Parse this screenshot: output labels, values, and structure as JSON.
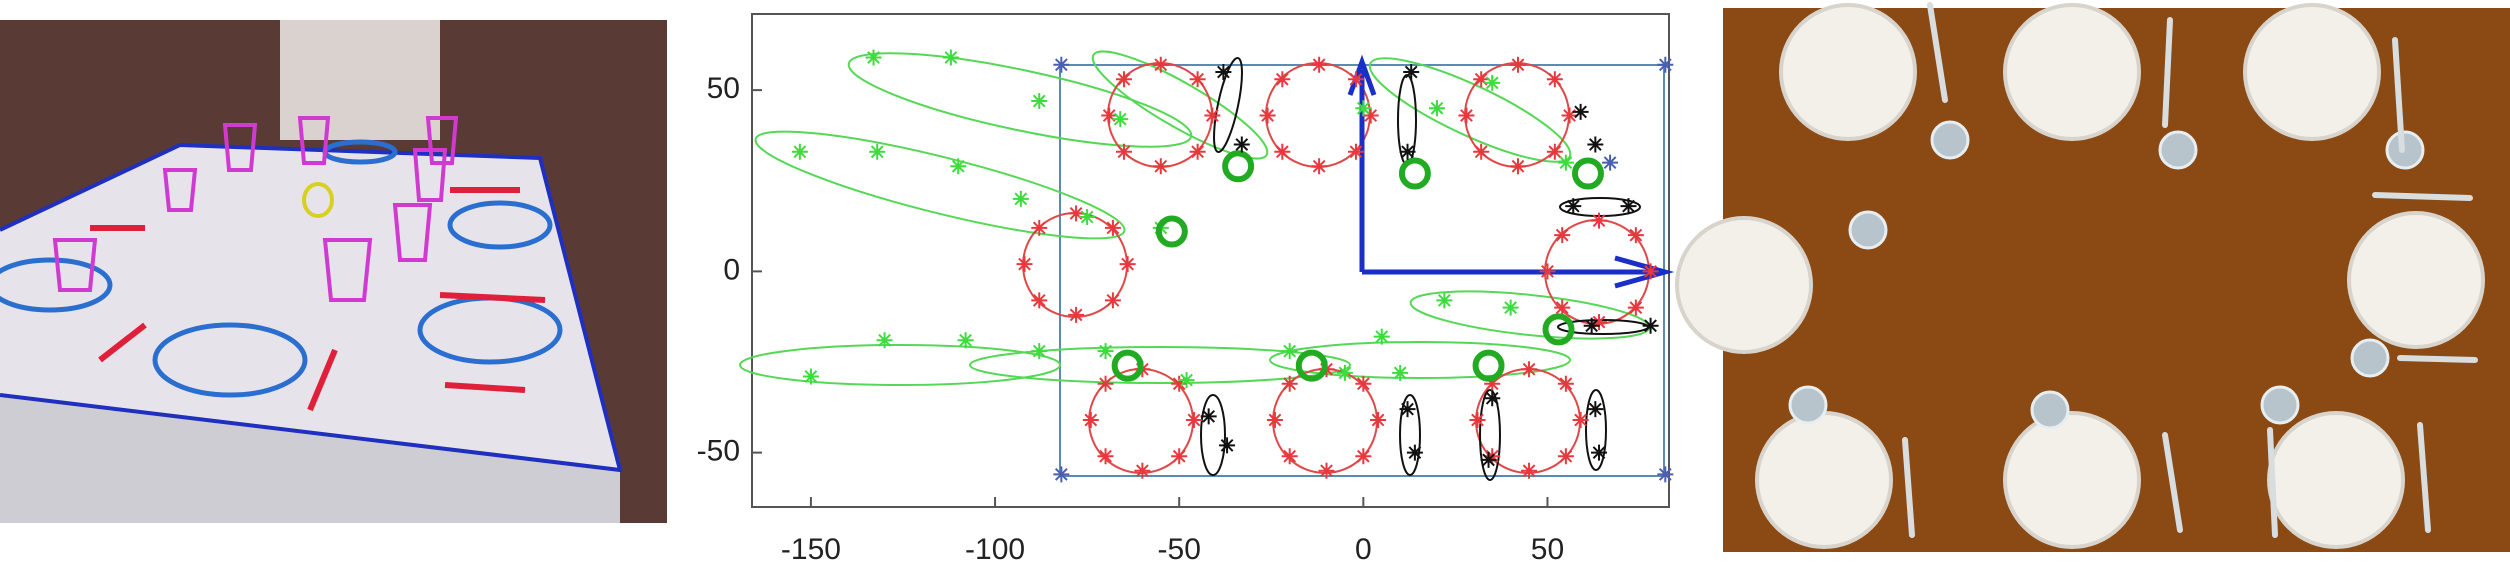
{
  "chart_data": {
    "type": "scatter",
    "xlim": [
      -166,
      83
    ],
    "ylim": [
      -65,
      71
    ],
    "xticks": [
      -150,
      -100,
      -50,
      0,
      50
    ],
    "yticks": [
      -50,
      0,
      50
    ],
    "series": [
      {
        "color": "#e8383d",
        "marker": "asterisk",
        "x": [
          -41,
          -45,
          -55,
          -65,
          -69,
          -65,
          -55,
          -45,
          2,
          -2,
          -12,
          -22,
          -26,
          -22,
          -12,
          -2,
          56,
          52,
          42,
          32,
          28,
          32,
          42,
          52,
          -64,
          -68,
          -78,
          -88,
          -92,
          -88,
          -78,
          -68,
          78,
          74,
          64,
          54,
          50,
          54,
          64,
          74,
          -46,
          -50,
          -60,
          -70,
          -74,
          -70,
          -60,
          -50,
          4,
          0,
          -10,
          -20,
          -24,
          -20,
          -10,
          0,
          59,
          55,
          45,
          35,
          31,
          35,
          45,
          55
        ],
        "values": [
          43,
          53,
          57,
          53,
          43,
          33,
          29,
          33,
          43,
          53,
          57,
          53,
          43,
          33,
          29,
          33,
          43,
          53,
          57,
          53,
          43,
          33,
          29,
          33,
          2,
          12,
          16,
          12,
          2,
          -8,
          -12,
          -8,
          0,
          10,
          14,
          10,
          0,
          -10,
          -14,
          -10,
          -41,
          -31,
          -27,
          -31,
          -41,
          -51,
          -55,
          -51,
          -41,
          -31,
          -27,
          -31,
          -41,
          -51,
          -55,
          -51,
          -41,
          -31,
          -27,
          -31,
          -41,
          -51,
          -55,
          -51
        ]
      },
      {
        "color": "#3ddc3d",
        "marker": "asterisk",
        "x": [
          -133,
          -112,
          -88,
          -66,
          -153,
          -132,
          -110,
          -93,
          -75,
          -55,
          -150,
          -130,
          -108,
          -88,
          -70,
          -48,
          -20,
          5,
          22,
          40,
          -5,
          10,
          0,
          20,
          35,
          55
        ],
        "values": [
          59,
          59,
          47,
          42,
          33,
          33,
          29,
          20,
          15,
          12,
          -29,
          -19,
          -19,
          -22,
          -22,
          -30,
          -22,
          -18,
          -8,
          -10,
          -28,
          -28,
          45,
          45,
          52,
          30
        ]
      },
      {
        "color": "#22aa22",
        "marker": "circle",
        "x": [
          -52,
          -64,
          -14,
          34,
          -34,
          14,
          61,
          53
        ],
        "values": [
          11,
          -26,
          -26,
          -26,
          29,
          27,
          27,
          -16
        ]
      },
      {
        "color": "#111111",
        "marker": "asterisk",
        "x": [
          -38,
          -33,
          13,
          12,
          59,
          63,
          57,
          72,
          62,
          78,
          -42,
          -37,
          12,
          14,
          35,
          34,
          63,
          64
        ],
        "values": [
          55,
          35,
          55,
          33,
          44,
          35,
          18,
          18,
          -15,
          -15,
          -40,
          -48,
          -38,
          -50,
          -35,
          -52,
          -38,
          -50
        ]
      },
      {
        "color": "#4a5fb0",
        "marker": "asterisk",
        "x": [
          -82,
          82,
          -82,
          82,
          67
        ],
        "values": [
          57,
          57,
          -56,
          -56,
          30
        ]
      }
    ]
  }
}
